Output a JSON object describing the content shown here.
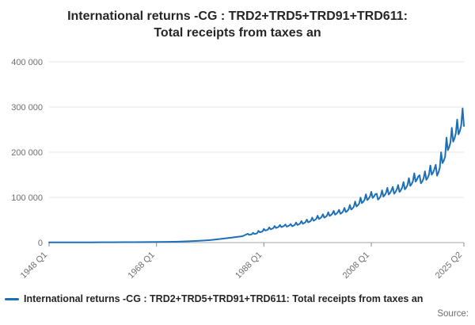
{
  "title": {
    "line1": "International returns -CG : TRD2+TRD5+TRD91+TRD611:",
    "line2": "Total receipts from taxes an"
  },
  "legend": {
    "label": "International returns -CG : TRD2+TRD5+TRD91+TRD611: Total receipts from taxes an"
  },
  "source": "Source:",
  "colors": {
    "line": "#1d70b8",
    "grid": "#e4e4e4",
    "zero_axis": "#a6a6a6",
    "tick_text": "#6e6e6e",
    "title_text": "#262626"
  },
  "chart_data": {
    "type": "line",
    "title": "International returns -CG : TRD2+TRD5+TRD91+TRD611: Total receipts from taxes an",
    "xlabel": "",
    "ylabel": "",
    "grid": "horizontal",
    "legend_position": "bottom-left",
    "xlim": [
      1948,
      2025.25
    ],
    "ylim": [
      0,
      400000
    ],
    "y_ticks": [
      {
        "v": 0,
        "label": "0"
      },
      {
        "v": 100000,
        "label": "100 000"
      },
      {
        "v": 200000,
        "label": "200 000"
      },
      {
        "v": 300000,
        "label": "300 000"
      },
      {
        "v": 400000,
        "label": "400 000"
      }
    ],
    "x_ticks": [
      {
        "v": 1948.0,
        "label": "1948 Q1"
      },
      {
        "v": 1968.0,
        "label": "1968 Q1"
      },
      {
        "v": 1988.0,
        "label": "1988 Q1"
      },
      {
        "v": 2008.0,
        "label": "2008 Q1"
      },
      {
        "v": 2025.25,
        "label": "2025 Q2"
      }
    ],
    "series": [
      {
        "name": "International returns -CG : TRD2+TRD5+TRD91+TRD611: Total receipts from taxes an",
        "color": "#1d70b8",
        "annual": {
          "x": [
            1948,
            1950,
            1952,
            1954,
            1956,
            1958,
            1960,
            1962,
            1964,
            1966,
            1968,
            1970,
            1972,
            1974,
            1976,
            1978,
            1980,
            1982,
            1984
          ],
          "y": [
            400,
            450,
            500,
            550,
            600,
            650,
            700,
            800,
            900,
            1000,
            1200,
            1500,
            2000,
            2800,
            4000,
            5500,
            8000,
            11000,
            14000
          ]
        },
        "quarterly": {
          "start": 1985.0,
          "step": 0.25,
          "values": [
            19400,
            17100,
            17600,
            18500,
            21600,
            19000,
            19600,
            20600,
            25900,
            22800,
            23500,
            24700,
            30200,
            26600,
            27400,
            28800,
            33500,
            29500,
            30400,
            31900,
            36700,
            32300,
            33300,
            35000,
            38900,
            34200,
            35300,
            37100,
            40000,
            35200,
            36300,
            38100,
            41000,
            36100,
            37200,
            39100,
            44300,
            39000,
            40200,
            42200,
            47500,
            41800,
            43100,
            45300,
            50800,
            44700,
            46100,
            48400,
            55100,
            48500,
            50000,
            52500,
            59400,
            52300,
            53900,
            56700,
            62600,
            55100,
            56800,
            59700,
            67000,
            58900,
            60800,
            63900,
            70200,
            61800,
            63700,
            67000,
            72400,
            63700,
            65700,
            69000,
            76700,
            67500,
            69600,
            73100,
            83200,
            73200,
            75500,
            79300,
            90700,
            79800,
            82300,
            86500,
            99400,
            87400,
            90200,
            94800,
            106900,
            94100,
            97000,
            102000,
            112300,
            98800,
            101900,
            107100,
            108000,
            95000,
            98000,
            103000,
            115600,
            101700,
            104900,
            110200,
            121000,
            106400,
            109800,
            115400,
            123100,
            108300,
            111700,
            117400,
            127400,
            112100,
            115600,
            121500,
            133900,
            117800,
            121500,
            127700,
            142600,
            125400,
            129400,
            136000,
            153400,
            134900,
            139200,
            146300,
            149000,
            131100,
            135200,
            142100,
            157700,
            138700,
            143100,
            150400,
            170600,
            150100,
            154800,
            162700,
            172000,
            148000,
            155000,
            165000,
            199800,
            175800,
            181300,
            190600,
            232200,
            204300,
            210700,
            221500,
            253800,
            223300,
            230300,
            242100,
            272200,
            239400,
            246900,
            259600,
            297000,
            258000
          ]
        }
      }
    ]
  }
}
